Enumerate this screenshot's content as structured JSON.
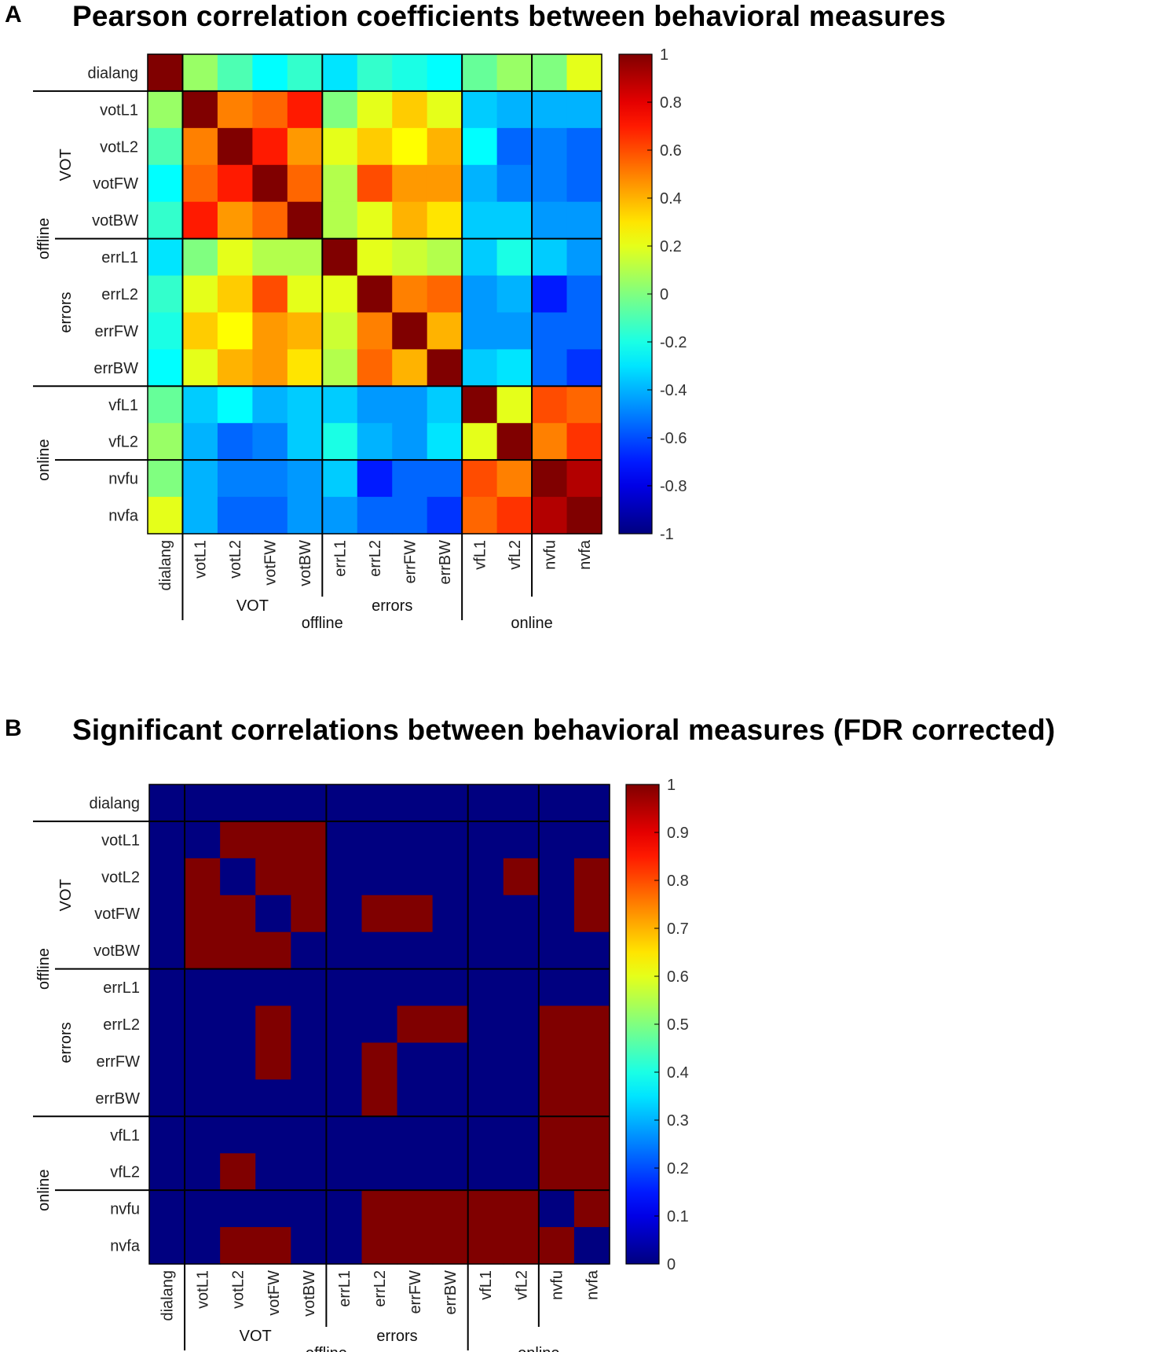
{
  "variables": [
    "dialang",
    "votL1",
    "votL2",
    "votFW",
    "votBW",
    "errL1",
    "errL2",
    "errFW",
    "errBW",
    "vfL1",
    "vfL2",
    "nvfu",
    "nvfa"
  ],
  "groups": {
    "sub": [
      {
        "label": "VOT",
        "from": 1,
        "to": 4
      },
      {
        "label": "errors",
        "from": 5,
        "to": 8
      }
    ],
    "main": [
      {
        "label": "offline",
        "from": 1,
        "to": 8
      },
      {
        "label": "online",
        "from": 9,
        "to": 12
      }
    ]
  },
  "chart_data": [
    {
      "panel": "A",
      "type": "heatmap",
      "title": "Pearson correlation coefficients between behavioral measures",
      "colormap": "jet",
      "clim": [
        -1,
        1
      ],
      "colorbar_ticks": [
        "1",
        "0.8",
        "0.6",
        "0.4",
        "0.2",
        "0",
        "-0.2",
        "-0.4",
        "-0.6",
        "-0.8",
        "-1"
      ],
      "row_labels": [
        "dialang",
        "votL1",
        "votL2",
        "votFW",
        "votBW",
        "errL1",
        "errL2",
        "errFW",
        "errBW",
        "vfL1",
        "vfL2",
        "nvfu",
        "nvfa"
      ],
      "col_labels": [
        "dialang",
        "votL1",
        "votL2",
        "votFW",
        "votBW",
        "errL1",
        "errL2",
        "errFW",
        "errBW",
        "vfL1",
        "vfL2",
        "nvfu",
        "nvfa"
      ],
      "values": [
        [
          1.0,
          0.05,
          -0.1,
          -0.25,
          -0.15,
          -0.3,
          -0.15,
          -0.2,
          -0.25,
          -0.05,
          0.05,
          0.0,
          0.2
        ],
        [
          0.05,
          1.0,
          0.5,
          0.55,
          0.7,
          0.0,
          0.2,
          0.35,
          0.2,
          -0.35,
          -0.4,
          -0.4,
          -0.4
        ],
        [
          -0.1,
          0.5,
          1.0,
          0.7,
          0.45,
          0.2,
          0.35,
          0.25,
          0.4,
          -0.25,
          -0.55,
          -0.5,
          -0.55
        ],
        [
          -0.25,
          0.55,
          0.7,
          1.0,
          0.55,
          0.1,
          0.6,
          0.45,
          0.45,
          -0.4,
          -0.5,
          -0.5,
          -0.55
        ],
        [
          -0.15,
          0.7,
          0.45,
          0.55,
          1.0,
          0.1,
          0.2,
          0.4,
          0.3,
          -0.35,
          -0.35,
          -0.45,
          -0.45
        ],
        [
          -0.3,
          0.0,
          0.2,
          0.1,
          0.1,
          1.0,
          0.2,
          0.15,
          0.1,
          -0.35,
          -0.2,
          -0.35,
          -0.45
        ],
        [
          -0.15,
          0.2,
          0.35,
          0.6,
          0.2,
          0.2,
          1.0,
          0.5,
          0.55,
          -0.45,
          -0.4,
          -0.7,
          -0.55
        ],
        [
          -0.2,
          0.35,
          0.25,
          0.45,
          0.4,
          0.15,
          0.5,
          1.0,
          0.4,
          -0.45,
          -0.45,
          -0.55,
          -0.55
        ],
        [
          -0.25,
          0.2,
          0.4,
          0.45,
          0.3,
          0.1,
          0.55,
          0.4,
          1.0,
          -0.35,
          -0.3,
          -0.55,
          -0.65
        ],
        [
          -0.05,
          -0.35,
          -0.25,
          -0.4,
          -0.35,
          -0.35,
          -0.45,
          -0.45,
          -0.35,
          1.0,
          0.2,
          0.6,
          0.55
        ],
        [
          0.05,
          -0.4,
          -0.55,
          -0.5,
          -0.35,
          -0.2,
          -0.4,
          -0.45,
          -0.3,
          0.2,
          1.0,
          0.5,
          0.65
        ],
        [
          0.0,
          -0.4,
          -0.5,
          -0.5,
          -0.45,
          -0.35,
          -0.7,
          -0.55,
          -0.55,
          0.6,
          0.5,
          1.0,
          0.9
        ],
        [
          0.2,
          -0.4,
          -0.55,
          -0.55,
          -0.45,
          -0.45,
          -0.55,
          -0.55,
          -0.65,
          0.55,
          0.65,
          0.9,
          1.0
        ]
      ]
    },
    {
      "panel": "B",
      "type": "heatmap",
      "title": "Significant correlations between behavioral measures (FDR corrected)",
      "colormap": "jet",
      "clim": [
        0,
        1
      ],
      "colorbar_ticks": [
        "1",
        "0.9",
        "0.8",
        "0.7",
        "0.6",
        "0.5",
        "0.4",
        "0.3",
        "0.2",
        "0.1",
        "0"
      ],
      "row_labels": [
        "dialang",
        "votL1",
        "votL2",
        "votFW",
        "votBW",
        "errL1",
        "errL2",
        "errFW",
        "errBW",
        "vfL1",
        "vfL2",
        "nvfu",
        "nvfa"
      ],
      "col_labels": [
        "dialang",
        "votL1",
        "votL2",
        "votFW",
        "votBW",
        "errL1",
        "errL2",
        "errFW",
        "errBW",
        "vfL1",
        "vfL2",
        "nvfu",
        "nvfa"
      ],
      "values": [
        [
          0,
          0,
          0,
          0,
          0,
          0,
          0,
          0,
          0,
          0,
          0,
          0,
          0
        ],
        [
          0,
          0,
          1,
          1,
          1,
          0,
          0,
          0,
          0,
          0,
          0,
          0,
          0
        ],
        [
          0,
          1,
          0,
          1,
          1,
          0,
          0,
          0,
          0,
          0,
          1,
          0,
          1
        ],
        [
          0,
          1,
          1,
          0,
          1,
          0,
          1,
          1,
          0,
          0,
          0,
          0,
          1
        ],
        [
          0,
          1,
          1,
          1,
          0,
          0,
          0,
          0,
          0,
          0,
          0,
          0,
          0
        ],
        [
          0,
          0,
          0,
          0,
          0,
          0,
          0,
          0,
          0,
          0,
          0,
          0,
          0
        ],
        [
          0,
          0,
          0,
          1,
          0,
          0,
          0,
          1,
          1,
          0,
          0,
          1,
          1
        ],
        [
          0,
          0,
          0,
          1,
          0,
          0,
          1,
          0,
          0,
          0,
          0,
          1,
          1
        ],
        [
          0,
          0,
          0,
          0,
          0,
          0,
          1,
          0,
          0,
          0,
          0,
          1,
          1
        ],
        [
          0,
          0,
          0,
          0,
          0,
          0,
          0,
          0,
          0,
          0,
          0,
          1,
          1
        ],
        [
          0,
          0,
          1,
          0,
          0,
          0,
          0,
          0,
          0,
          0,
          0,
          1,
          1
        ],
        [
          0,
          0,
          0,
          0,
          0,
          0,
          1,
          1,
          1,
          1,
          1,
          0,
          1
        ],
        [
          0,
          0,
          1,
          1,
          0,
          0,
          1,
          1,
          1,
          1,
          1,
          1,
          0
        ]
      ]
    }
  ],
  "panels": [
    {
      "letter": "A",
      "title": "Pearson correlation coefficients between behavioral measures"
    },
    {
      "letter": "B",
      "title": "Significant correlations between behavioral measures (FDR corrected)"
    }
  ]
}
